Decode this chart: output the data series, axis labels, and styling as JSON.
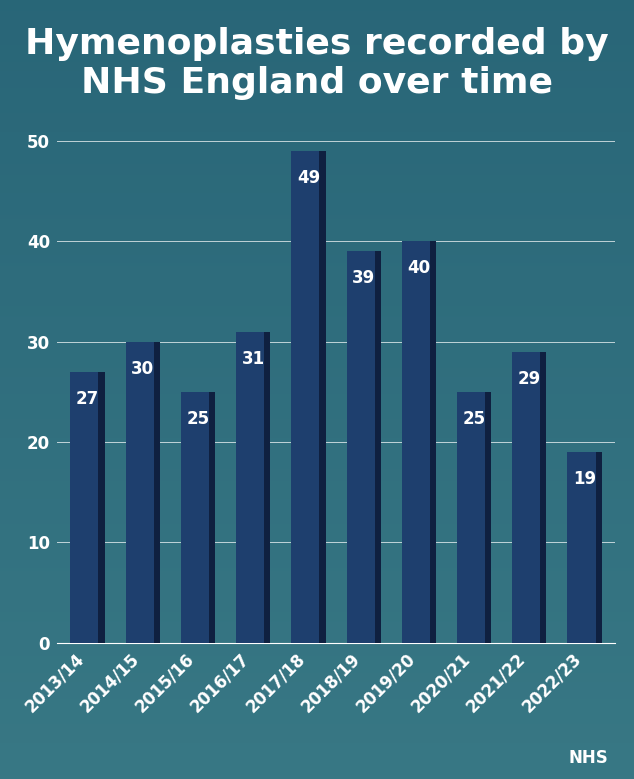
{
  "title_line1": "Hymenoplasties recorded by",
  "title_line2": "NHS England over time",
  "categories": [
    "2013/14",
    "2014/15",
    "2015/16",
    "2016/17",
    "2017/18",
    "2018/19",
    "2019/20",
    "2020/21",
    "2021/22",
    "2022/23"
  ],
  "values": [
    27,
    30,
    25,
    31,
    49,
    39,
    40,
    25,
    29,
    19
  ],
  "bar_color": "#1e3f6e",
  "background_top": "#2a6070",
  "background_mid": "#4a8090",
  "background_bot": "#3a7585",
  "title_color": "#ffffff",
  "label_color": "#ffffff",
  "tick_color": "#ffffff",
  "grid_color": "#ffffff",
  "source_text": "NHS",
  "ylim": [
    0,
    52
  ],
  "yticks": [
    0,
    10,
    20,
    30,
    40,
    50
  ],
  "title_fontsize": 26,
  "tick_fontsize": 12,
  "source_fontsize": 12,
  "value_fontsize": 12,
  "fig_width": 6.34,
  "fig_height": 7.79,
  "dpi": 100
}
